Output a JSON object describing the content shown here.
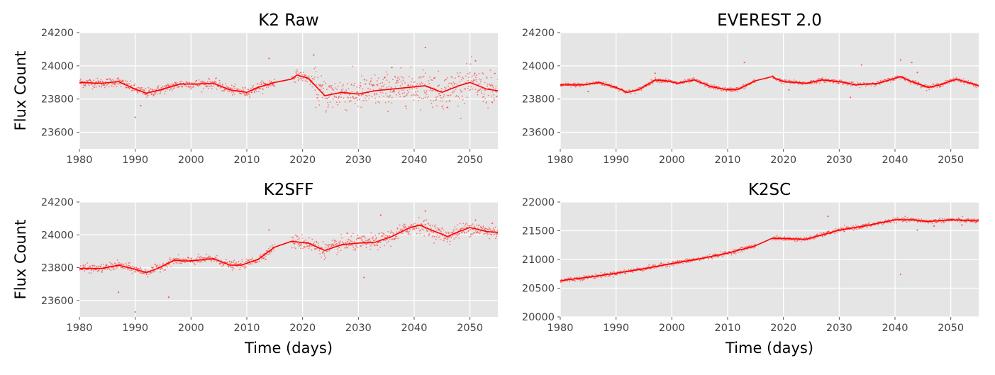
{
  "chart_data": [
    {
      "id": "k2raw",
      "type": "scatter",
      "title": "K2 Raw",
      "xlabel": "",
      "ylabel": "Flux Count",
      "xlim": [
        1980,
        2055
      ],
      "ylim": [
        23500,
        24200
      ],
      "xticks": [
        1980,
        1990,
        2000,
        2010,
        2020,
        2030,
        2040,
        2050
      ],
      "yticks": [
        23600,
        23800,
        24000,
        24200
      ],
      "grid": true,
      "trend": [
        [
          1980,
          23900
        ],
        [
          1984,
          23895
        ],
        [
          1987,
          23905
        ],
        [
          1990,
          23860
        ],
        [
          1992,
          23835
        ],
        [
          1995,
          23860
        ],
        [
          1998,
          23890
        ],
        [
          2001,
          23890
        ],
        [
          2004,
          23895
        ],
        [
          2007,
          23855
        ],
        [
          2010,
          23840
        ],
        [
          2012,
          23870
        ],
        [
          2015,
          23900
        ],
        [
          2018,
          23920
        ],
        [
          2019,
          23945
        ],
        [
          2021,
          23925
        ],
        [
          2022,
          23890
        ],
        [
          2024,
          23820
        ],
        [
          2027,
          23840
        ],
        [
          2030,
          23830
        ],
        [
          2033,
          23850
        ],
        [
          2036,
          23860
        ],
        [
          2039,
          23870
        ],
        [
          2042,
          23880
        ],
        [
          2045,
          23840
        ],
        [
          2048,
          23880
        ],
        [
          2050,
          23900
        ],
        [
          2053,
          23860
        ],
        [
          2055,
          23850
        ]
      ],
      "gaps": [
        [
          2015,
          2018
        ]
      ],
      "scatter": [
        0,
        0
      ],
      "outliers": [
        [
          1990,
          23690
        ],
        [
          1991,
          23760
        ],
        [
          2014,
          24045
        ],
        [
          2022,
          24065
        ],
        [
          2042,
          24110
        ],
        [
          2036,
          23990
        ],
        [
          2046,
          23750
        ],
        [
          2051,
          24030
        ],
        [
          2054,
          23780
        ]
      ]
    },
    {
      "id": "everest",
      "type": "scatter",
      "title": "EVEREST 2.0",
      "xlabel": "",
      "ylabel": "",
      "xlim": [
        1980,
        2055
      ],
      "ylim": [
        23500,
        24200
      ],
      "xticks": [
        1980,
        1990,
        2000,
        2010,
        2020,
        2030,
        2040,
        2050
      ],
      "yticks": [
        23600,
        23800,
        24000,
        24200
      ],
      "grid": true,
      "trend": [
        [
          1980,
          23885
        ],
        [
          1984,
          23885
        ],
        [
          1987,
          23900
        ],
        [
          1990,
          23870
        ],
        [
          1992,
          23840
        ],
        [
          1994,
          23855
        ],
        [
          1997,
          23915
        ],
        [
          1999,
          23910
        ],
        [
          2001,
          23895
        ],
        [
          2004,
          23915
        ],
        [
          2007,
          23875
        ],
        [
          2010,
          23855
        ],
        [
          2012,
          23860
        ],
        [
          2015,
          23910
        ],
        [
          2018,
          23935
        ],
        [
          2018.5,
          23925
        ],
        [
          2020,
          23905
        ],
        [
          2024,
          23895
        ],
        [
          2027,
          23915
        ],
        [
          2030,
          23905
        ],
        [
          2033,
          23885
        ],
        [
          2037,
          23895
        ],
        [
          2041,
          23935
        ],
        [
          2043,
          23905
        ],
        [
          2046,
          23870
        ],
        [
          2048,
          23885
        ],
        [
          2051,
          23920
        ],
        [
          2055,
          23880
        ]
      ],
      "gaps": [
        [
          2015,
          2018
        ]
      ],
      "scatter": [
        0,
        0
      ],
      "outliers": [
        [
          1985,
          23845
        ],
        [
          1997,
          23955
        ],
        [
          2013,
          24020
        ],
        [
          2021,
          23855
        ],
        [
          2032,
          23810
        ],
        [
          2034,
          24005
        ],
        [
          2041,
          24035
        ],
        [
          2043,
          24020
        ],
        [
          2044,
          23960
        ]
      ]
    },
    {
      "id": "k2sff",
      "type": "scatter",
      "title": "K2SFF",
      "xlabel": "Time (days)",
      "ylabel": "Flux Count",
      "xlim": [
        1980,
        2055
      ],
      "ylim": [
        23500,
        24200
      ],
      "xticks": [
        1980,
        1990,
        2000,
        2010,
        2020,
        2030,
        2040,
        2050
      ],
      "yticks": [
        23600,
        23800,
        24000,
        24200
      ],
      "grid": true,
      "trend": [
        [
          1980,
          23795
        ],
        [
          1984,
          23795
        ],
        [
          1987,
          23815
        ],
        [
          1990,
          23790
        ],
        [
          1992,
          23770
        ],
        [
          1994,
          23795
        ],
        [
          1997,
          23845
        ],
        [
          1999,
          23840
        ],
        [
          2001,
          23845
        ],
        [
          2004,
          23855
        ],
        [
          2007,
          23815
        ],
        [
          2009,
          23815
        ],
        [
          2012,
          23850
        ],
        [
          2015,
          23925
        ],
        [
          2018,
          23960
        ],
        [
          2021,
          23950
        ],
        [
          2024,
          23905
        ],
        [
          2027,
          23940
        ],
        [
          2030,
          23950
        ],
        [
          2033,
          23955
        ],
        [
          2036,
          23990
        ],
        [
          2039,
          24040
        ],
        [
          2041,
          24060
        ],
        [
          2043,
          24030
        ],
        [
          2046,
          23990
        ],
        [
          2048,
          24020
        ],
        [
          2050,
          24045
        ],
        [
          2053,
          24020
        ],
        [
          2055,
          24015
        ]
      ],
      "gaps": [
        [
          2015,
          2018
        ]
      ],
      "scatter": [
        0,
        0
      ],
      "outliers": [
        [
          1990,
          23530
        ],
        [
          1987,
          23650
        ],
        [
          1996,
          23620
        ],
        [
          2014,
          24030
        ],
        [
          2028,
          24010
        ],
        [
          2031,
          23740
        ],
        [
          2034,
          24120
        ],
        [
          2042,
          24145
        ],
        [
          2051,
          24090
        ],
        [
          2054,
          24070
        ]
      ]
    },
    {
      "id": "k2sc",
      "type": "scatter",
      "title": "K2SC",
      "xlabel": "Time (days)",
      "ylabel": "",
      "xlim": [
        1980,
        2055
      ],
      "ylim": [
        20000,
        22000
      ],
      "xticks": [
        1980,
        1990,
        2000,
        2010,
        2020,
        2030,
        2040,
        2050
      ],
      "yticks": [
        20000,
        20500,
        21000,
        21500,
        22000
      ],
      "grid": true,
      "trend": [
        [
          1980,
          20630
        ],
        [
          1985,
          20690
        ],
        [
          1990,
          20760
        ],
        [
          1995,
          20840
        ],
        [
          2000,
          20930
        ],
        [
          2005,
          21010
        ],
        [
          2010,
          21110
        ],
        [
          2015,
          21240
        ],
        [
          2018,
          21370
        ],
        [
          2021,
          21360
        ],
        [
          2024,
          21350
        ],
        [
          2027,
          21430
        ],
        [
          2030,
          21510
        ],
        [
          2035,
          21590
        ],
        [
          2040,
          21690
        ],
        [
          2043,
          21690
        ],
        [
          2046,
          21660
        ],
        [
          2050,
          21690
        ],
        [
          2055,
          21670
        ]
      ],
      "gaps": [
        [
          2015,
          2018
        ]
      ],
      "scatter": [
        0,
        0
      ],
      "outliers": [
        [
          2028,
          21750
        ],
        [
          2041,
          20740
        ],
        [
          2044,
          21510
        ],
        [
          2047,
          21580
        ],
        [
          2052,
          21600
        ]
      ]
    }
  ]
}
